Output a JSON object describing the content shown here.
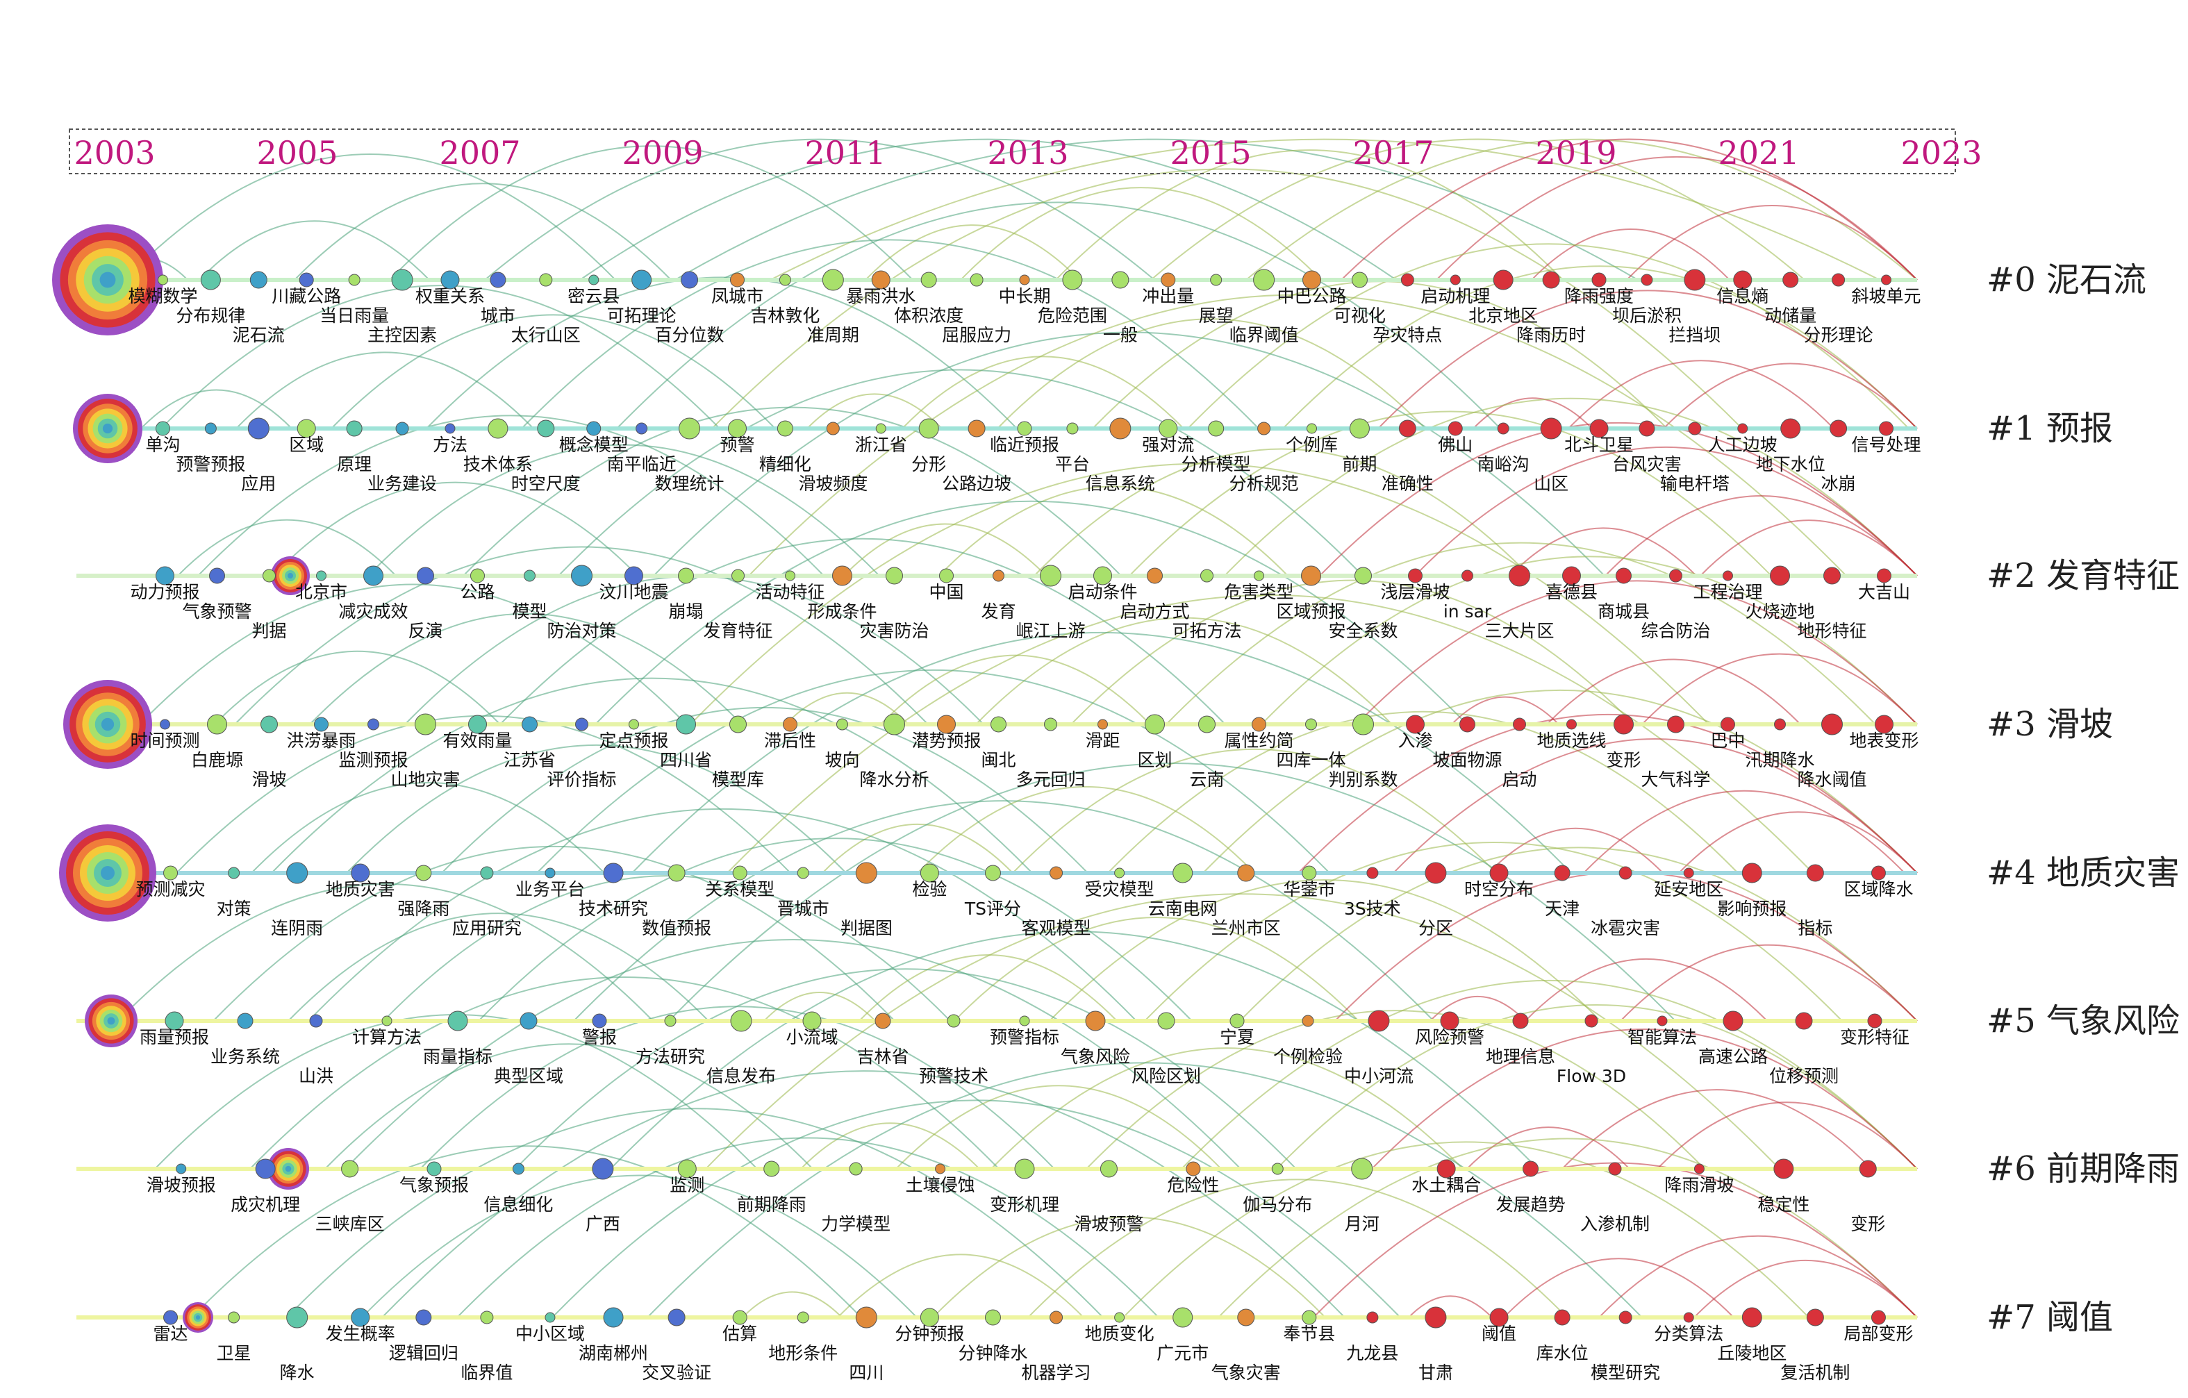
{
  "years": [
    "2003",
    "2005",
    "2007",
    "2009",
    "2011",
    "2013",
    "2015",
    "2017",
    "2019",
    "2021",
    "2023"
  ],
  "clusters": [
    {
      "label": "#0 泥石流"
    },
    {
      "label": "#1 预报"
    },
    {
      "label": "#2 发育特征"
    },
    {
      "label": "#3 滑坡"
    },
    {
      "label": "#4 地质灾害"
    },
    {
      "label": "#5 气象风险"
    },
    {
      "label": "#6 前期降雨"
    },
    {
      "label": "#7 阈值"
    }
  ],
  "keywords": [
    [
      "模糊数学",
      "分布规律",
      "泥石流",
      "川藏公路",
      "当日雨量",
      "主控因素",
      "权重关系",
      "城市",
      "太行山区",
      "密云县",
      "可拓理论",
      "百分位数",
      "凤城市",
      "吉林敦化",
      "准周期",
      "暴雨洪水",
      "体积浓度",
      "屈服应力",
      "中长期",
      "危险范围",
      "一般",
      "冲出量",
      "展望",
      "临界阈值",
      "中巴公路",
      "可视化",
      "孕灾特点",
      "启动机理",
      "北京地区",
      "降雨历时",
      "降雨强度",
      "坝后淤积",
      "拦挡坝",
      "信息熵",
      "动储量",
      "分形理论",
      "斜坡单元"
    ],
    [
      "单沟",
      "预警预报",
      "应用",
      "区域",
      "原理",
      "业务建设",
      "方法",
      "技术体系",
      "时空尺度",
      "概念模型",
      "南平临近",
      "数理统计",
      "预警",
      "精细化",
      "滑坡频度",
      "浙江省",
      "分形",
      "公路边坡",
      "临近预报",
      "平台",
      "信息系统",
      "强对流",
      "分析模型",
      "分析规范",
      "个例库",
      "前期",
      "准确性",
      "佛山",
      "南峪沟",
      "山区",
      "北斗卫星",
      "台风灾害",
      "输电杆塔",
      "人工边坡",
      "地下水位",
      "冰崩",
      "信号处理"
    ],
    [
      "动力预报",
      "气象预警",
      "判据",
      "北京市",
      "减灾成效",
      "反演",
      "公路",
      "模型",
      "防治对策",
      "汶川地震",
      "崩塌",
      "发育特征",
      "活动特征",
      "形成条件",
      "灾害防治",
      "中国",
      "发育",
      "岷江上游",
      "启动条件",
      "启动方式",
      "可拓方法",
      "危害类型",
      "区域预报",
      "安全系数",
      "浅层滑坡",
      "in sar",
      "三大片区",
      "喜德县",
      "商城县",
      "综合防治",
      "工程治理",
      "火烧迹地",
      "地形特征",
      "大吉山"
    ],
    [
      "时间预测",
      "白鹿塬",
      "滑坡",
      "洪涝暴雨",
      "监测预报",
      "山地灾害",
      "有效雨量",
      "江苏省",
      "评价指标",
      "定点预报",
      "四川省",
      "模型库",
      "滞后性",
      "坡向",
      "降水分析",
      "潜势预报",
      "闽北",
      "多元回归",
      "滑距",
      "区划",
      "云南",
      "属性约简",
      "四库一体",
      "判别系数",
      "入渗",
      "坡面物源",
      "启动",
      "地质选线",
      "变形",
      "大气科学",
      "巴中",
      "汛期降水",
      "降水阈值",
      "地表变形"
    ],
    [
      "预测减灾",
      "对策",
      "连阴雨",
      "地质灾害",
      "强降雨",
      "应用研究",
      "业务平台",
      "技术研究",
      "数值预报",
      "关系模型",
      "晋城市",
      "判据图",
      "检验",
      "TS评分",
      "客观模型",
      "受灾模型",
      "云南电网",
      "兰州市区",
      "华蓥市",
      "3S技术",
      "分区",
      "时空分布",
      "天津",
      "冰雹灾害",
      "延安地区",
      "影响预报",
      "指标",
      "区域降水"
    ],
    [
      "雨量预报",
      "业务系统",
      "山洪",
      "计算方法",
      "雨量指标",
      "典型区域",
      "警报",
      "方法研究",
      "信息发布",
      "小流域",
      "吉林省",
      "预警技术",
      "预警指标",
      "气象风险",
      "风险区划",
      "宁夏",
      "个例检验",
      "中小河流",
      "风险预警",
      "地理信息",
      "Flow 3D",
      "智能算法",
      "高速公路",
      "位移预测",
      "变形特征"
    ],
    [
      "滑坡预报",
      "成灾机理",
      "三峡库区",
      "气象预报",
      "信息细化",
      "广西",
      "监测",
      "前期降雨",
      "力学模型",
      "土壤侵蚀",
      "变形机理",
      "滑坡预警",
      "危险性",
      "伽马分布",
      "月河",
      "水土耦合",
      "发展趋势",
      "入渗机制",
      "降雨滑坡",
      "稳定性",
      "变形"
    ],
    [
      "雷达",
      "卫星",
      "降水",
      "发生概率",
      "逻辑回归",
      "临界值",
      "中小区域",
      "湖南郴州",
      "交叉验证",
      "估算",
      "地形条件",
      "四川",
      "分钟预报",
      "分钟降水",
      "机器学习",
      "地质变化",
      "广元市",
      "气象灾害",
      "奉节县",
      "九龙县",
      "甘肃",
      "阈值",
      "库水位",
      "模型研究",
      "分类算法",
      "丘陵地区",
      "复活机制",
      "局部变形"
    ]
  ],
  "palette": [
    "#a8e06b",
    "#5fc6a8",
    "#3fa0c8",
    "#4f6fd0",
    "#e08a3a",
    "#d8323a",
    "#9c4fc4",
    "#f5d23a"
  ]
}
